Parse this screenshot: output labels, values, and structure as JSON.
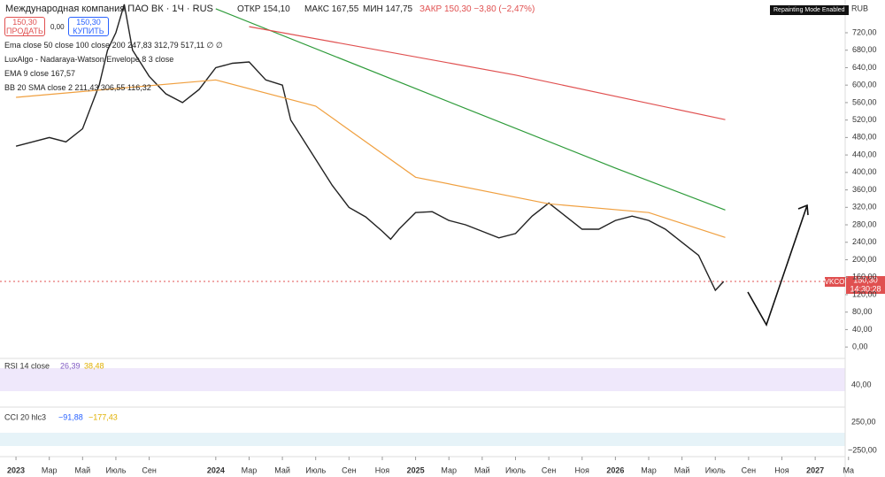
{
  "header": {
    "title": "Международная компания ПАО ВК · 1Ч · RUS",
    "open": "ОТКР 154,10",
    "high": "МАКС 167,55",
    "low": "МИН 147,75",
    "close": "ЗАКР 150,30 −3,80 (−2,47%)",
    "sell_price": "150,30",
    "sell": "ПРОДАТЬ",
    "spread": "0,00",
    "buy_price": "150,30",
    "buy": "КУПИТЬ",
    "badge": "Repainting Mode Enabled",
    "currency": "RUB"
  },
  "legend": [
    "Ema close 50 close 100 close 200 247,83 312,79 517,11 ∅ ∅",
    "LuxAlgo - Nadaraya-Watson Envelope 8 3 close",
    "EMA 9 close 167,57",
    "BB 20 SMA close 2 211,43 306,55 116,32"
  ],
  "price_tag": {
    "ticker": "VKCO",
    "price": "150,30",
    "time": "14:30:28"
  },
  "rsi": {
    "title": "RSI 14 close",
    "v1": "26,39",
    "v2": "38,48",
    "tick": "40,00"
  },
  "cci": {
    "title": "CCI 20 hlc3",
    "v1": "−91,88",
    "v2": "−177,43",
    "tick_top": "250,00",
    "tick_bottom": "−250,00"
  },
  "chart_data": {
    "type": "line",
    "x": [
      0,
      1,
      2,
      3,
      4,
      5,
      5.5,
      6,
      6.5,
      7,
      8,
      9,
      10,
      11,
      12,
      13,
      14,
      15,
      16,
      16.5,
      17,
      18,
      19,
      20,
      21,
      22,
      22.5,
      23,
      24,
      25,
      26,
      27,
      28,
      29,
      30,
      31,
      32,
      33,
      34,
      35,
      36,
      37,
      38,
      39,
      40,
      41,
      42,
      42.5
    ],
    "series": [
      {
        "color": "#222222",
        "values": [
          460,
          470,
          480,
          470,
          500,
          600,
          680,
          720,
          785,
          680,
          620,
          580,
          560,
          590,
          640,
          650,
          653,
          612,
          600,
          520,
          490,
          430,
          370,
          320,
          298,
          265,
          247,
          270,
          308,
          310,
          290,
          280,
          265,
          250,
          260,
          300,
          330,
          300,
          270,
          270,
          290,
          300,
          290,
          270,
          240,
          210,
          130,
          150
        ]
      },
      {
        "color": "#2e9b3a",
        "x": [
          12,
          24,
          36,
          42.6
        ],
        "values": [
          775,
          592,
          410,
          314
        ]
      },
      {
        "color": "#e05050",
        "x": [
          14,
          30,
          42.6
        ],
        "values": [
          734,
          623,
          521
        ]
      },
      {
        "color": "#f0a040",
        "x": [
          0,
          12,
          18,
          24,
          32,
          38,
          42.6
        ],
        "values": [
          572,
          612,
          552,
          389,
          328,
          308,
          251
        ]
      }
    ],
    "xlim": [
      -0.96,
      49.8
    ],
    "xticks": [
      {
        "value": 0,
        "label": "2023"
      },
      {
        "value": 2,
        "label": "Мар"
      },
      {
        "value": 4,
        "label": "Май"
      },
      {
        "value": 6,
        "label": "Июль"
      },
      {
        "value": 8,
        "label": "Сен"
      },
      {
        "value": 12,
        "label": "2024"
      },
      {
        "value": 14,
        "label": "Мар"
      },
      {
        "value": 16,
        "label": "Май"
      },
      {
        "value": 18,
        "label": "Июль"
      },
      {
        "value": 20,
        "label": "Сен"
      },
      {
        "value": 22,
        "label": "Ноя"
      },
      {
        "value": 24,
        "label": "2025"
      },
      {
        "value": 26,
        "label": "Мар"
      },
      {
        "value": 28,
        "label": "Май"
      },
      {
        "value": 30,
        "label": "Июль"
      },
      {
        "value": 32,
        "label": "Сен"
      },
      {
        "value": 34,
        "label": "Ноя"
      },
      {
        "value": 36,
        "label": "2026"
      },
      {
        "value": 38,
        "label": "Мар"
      },
      {
        "value": 40,
        "label": "Май"
      },
      {
        "value": 42,
        "label": "Июль"
      },
      {
        "value": 44,
        "label": "Сен"
      },
      {
        "value": 46,
        "label": "Ноя"
      },
      {
        "value": 48,
        "label": "2027"
      },
      {
        "value": 50,
        "label": "Ма"
      }
    ],
    "ylim": [
      -20,
      795
    ],
    "yticks": [
      {
        "value": 0,
        "label": "0,00"
      },
      {
        "value": 40,
        "label": "40,00"
      },
      {
        "value": 80,
        "label": "80,00"
      },
      {
        "value": 120,
        "label": "120,00"
      },
      {
        "value": 160,
        "label": "160,00"
      },
      {
        "value": 200,
        "label": "200,00"
      },
      {
        "value": 240,
        "label": "240,00"
      },
      {
        "value": 280,
        "label": "280,00"
      },
      {
        "value": 320,
        "label": "320,00"
      },
      {
        "value": 360,
        "label": "360,00"
      },
      {
        "value": 400,
        "label": "400,00"
      },
      {
        "value": 440,
        "label": "440,00"
      },
      {
        "value": 480,
        "label": "480,00"
      },
      {
        "value": 520,
        "label": "520,00"
      },
      {
        "value": 560,
        "label": "560,00"
      },
      {
        "value": 600,
        "label": "600,00"
      },
      {
        "value": 640,
        "label": "640,00"
      },
      {
        "value": 680,
        "label": "680,00"
      },
      {
        "value": 720,
        "label": "720,00"
      }
    ]
  }
}
